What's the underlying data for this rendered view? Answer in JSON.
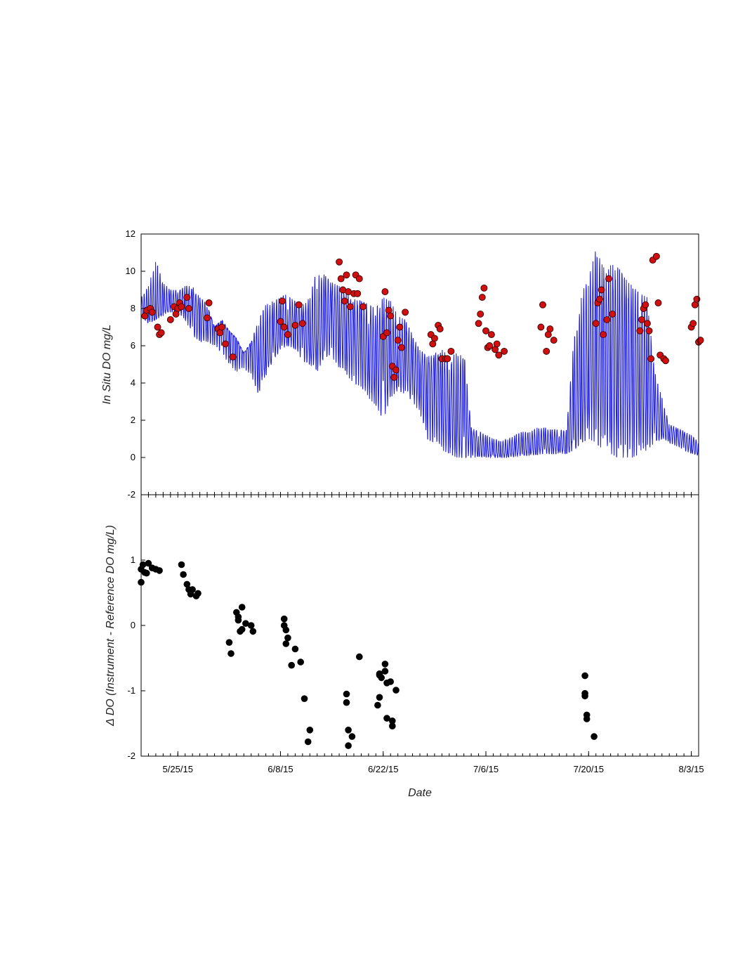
{
  "chart_data": [
    {
      "type": "line",
      "ylabel": "In Situ DO mg/L",
      "xlabel": "",
      "ylim": [
        -2,
        12
      ],
      "yticks": [
        -2,
        0,
        2,
        4,
        6,
        8,
        10,
        12
      ],
      "xlim": [
        "2015-05-20",
        "2015-08-04"
      ],
      "xticks": [],
      "grid": false,
      "series": [
        {
          "color": "#1a1adb",
          "style": "line",
          "x": [
            "2015-05-20",
            "2015-05-21",
            "2015-05-22",
            "2015-05-23",
            "2015-05-24",
            "2015-05-25",
            "2015-05-26",
            "2015-05-27",
            "2015-05-28",
            "2015-05-29",
            "2015-05-30",
            "2015-05-31",
            "2015-06-01",
            "2015-06-02",
            "2015-06-03",
            "2015-06-04",
            "2015-06-05",
            "2015-06-06",
            "2015-06-07",
            "2015-06-08",
            "2015-06-09",
            "2015-06-10",
            "2015-06-11",
            "2015-06-12",
            "2015-06-13",
            "2015-06-14",
            "2015-06-15",
            "2015-06-16",
            "2015-06-17",
            "2015-06-18",
            "2015-06-19",
            "2015-06-20",
            "2015-06-21",
            "2015-06-22",
            "2015-06-23",
            "2015-06-24",
            "2015-06-25",
            "2015-06-26",
            "2015-06-27",
            "2015-06-28",
            "2015-06-29",
            "2015-06-30",
            "2015-07-01",
            "2015-07-02",
            "2015-07-03",
            "2015-07-04",
            "2015-07-05",
            "2015-07-06",
            "2015-07-07",
            "2015-07-08",
            "2015-07-09",
            "2015-07-10",
            "2015-07-11",
            "2015-07-12",
            "2015-07-13",
            "2015-07-14",
            "2015-07-15",
            "2015-07-16",
            "2015-07-17",
            "2015-07-18",
            "2015-07-19",
            "2015-07-20",
            "2015-07-21",
            "2015-07-22",
            "2015-07-23",
            "2015-07-24",
            "2015-07-25",
            "2015-07-26",
            "2015-07-27",
            "2015-07-28",
            "2015-07-29",
            "2015-07-30",
            "2015-07-31",
            "2015-08-01",
            "2015-08-02",
            "2015-08-03",
            "2015-08-04"
          ],
          "y": [
            8.0,
            7.8,
            7.6,
            7.9,
            8.3,
            8.5,
            8.2,
            7.9,
            7.6,
            7.7,
            7.5,
            7.3,
            7.0,
            6.5,
            6.0,
            5.8,
            5.6,
            5.5,
            6.0,
            6.8,
            7.0,
            7.2,
            6.8,
            6.4,
            6.6,
            7.2,
            7.6,
            7.4,
            7.0,
            6.6,
            6.4,
            6.0,
            5.4,
            5.2,
            5.0,
            5.4,
            5.6,
            4.8,
            4.4,
            4.2,
            3.8,
            3.2,
            2.8,
            2.4,
            2.0,
            1.2,
            0.6,
            0.4,
            0.3,
            0.25,
            0.3,
            0.35,
            0.4,
            0.5,
            0.6,
            0.7,
            0.8,
            0.7,
            0.6,
            1.6,
            3.6,
            5.2,
            5.8,
            6.0,
            5.6,
            5.2,
            5.0,
            5.4,
            4.8,
            3.6,
            2.2,
            1.6,
            1.4,
            1.2,
            1.0,
            0.7,
            0.3
          ],
          "y_max": [
            8.6,
            9.2,
            10.6,
            9.4,
            9.0,
            9.0,
            9.2,
            9.2,
            8.6,
            8.2,
            7.0,
            7.4,
            6.8,
            6.4,
            5.6,
            6.2,
            7.4,
            8.2,
            8.4,
            8.6,
            8.8,
            8.4,
            8.2,
            8.6,
            10.2,
            9.8,
            9.4,
            9.2,
            8.8,
            8.6,
            8.4,
            8.2,
            8.0,
            8.6,
            8.4,
            7.6,
            7.4,
            6.6,
            5.8,
            5.4,
            5.6,
            5.8,
            5.4,
            5.6,
            5.8,
            1.6,
            1.4,
            1.2,
            1.0,
            0.9,
            1.0,
            1.2,
            1.4,
            1.4,
            1.6,
            1.6,
            1.5,
            1.5,
            1.5,
            6.4,
            8.8,
            9.6,
            11.2,
            10.2,
            10.4,
            10.2,
            9.6,
            9.2,
            8.8,
            8.6,
            4.6,
            3.2,
            1.8,
            1.6,
            1.4,
            1.2,
            0.8
          ],
          "y_min": [
            7.6,
            7.2,
            7.4,
            7.6,
            7.8,
            7.8,
            7.4,
            6.6,
            6.2,
            6.2,
            6.0,
            5.6,
            5.0,
            4.6,
            4.8,
            4.4,
            3.4,
            4.4,
            5.2,
            5.8,
            6.0,
            5.8,
            5.2,
            5.0,
            4.6,
            5.4,
            5.4,
            4.8,
            4.4,
            4.0,
            3.8,
            3.2,
            2.8,
            2.0,
            3.2,
            3.6,
            3.4,
            3.0,
            2.4,
            1.0,
            0.8,
            0.4,
            0.2,
            0.0,
            0.0,
            0.0,
            0.0,
            0.0,
            0.0,
            0.0,
            0.0,
            0.05,
            0.1,
            0.1,
            0.15,
            0.2,
            0.2,
            0.2,
            0.2,
            0.4,
            0.8,
            1.0,
            0.8,
            0.4,
            0.2,
            0.0,
            0.0,
            0.0,
            0.2,
            0.4,
            0.8,
            1.0,
            0.8,
            0.6,
            0.4,
            0.2,
            0.1
          ]
        },
        {
          "color": "#d01010",
          "style": "marker",
          "x": [
            "2015-05-20T12",
            "2015-05-20T18",
            "2015-05-21T06",
            "2015-05-21T12",
            "2015-05-22T06",
            "2015-05-22T12",
            "2015-05-22T18",
            "2015-05-24T00",
            "2015-05-24T12",
            "2015-05-24T18",
            "2015-05-25T00",
            "2015-05-25T06",
            "2015-05-25T12",
            "2015-05-26T06",
            "2015-05-26T12",
            "2015-05-29T00",
            "2015-05-29T06",
            "2015-05-30T12",
            "2015-05-30T18",
            "2015-05-31T00",
            "2015-05-31T12",
            "2015-06-01T12",
            "2015-06-08T00",
            "2015-06-08T06",
            "2015-06-08T12",
            "2015-06-09T00",
            "2015-06-10T00",
            "2015-06-10T12",
            "2015-06-11T00",
            "2015-06-16T00",
            "2015-06-16T06",
            "2015-06-16T12",
            "2015-06-16T18",
            "2015-06-17T00",
            "2015-06-17T06",
            "2015-06-17T12",
            "2015-06-18T00",
            "2015-06-18T06",
            "2015-06-18T12",
            "2015-06-18T18",
            "2015-06-19T06",
            "2015-06-22T00",
            "2015-06-22T06",
            "2015-06-22T12",
            "2015-06-22T18",
            "2015-06-23T00",
            "2015-06-23T06",
            "2015-06-23T12",
            "2015-06-23T18",
            "2015-06-24T00",
            "2015-06-24T06",
            "2015-06-24T12",
            "2015-06-25T00",
            "2015-06-28T12",
            "2015-06-28T18",
            "2015-06-29T00",
            "2015-06-29T12",
            "2015-06-29T18",
            "2015-06-30T00",
            "2015-06-30T12",
            "2015-06-30T18",
            "2015-07-01T06",
            "2015-07-05T00",
            "2015-07-05T06",
            "2015-07-05T12",
            "2015-07-05T18",
            "2015-07-06T00",
            "2015-07-06T06",
            "2015-07-06T12",
            "2015-07-06T18",
            "2015-07-07T06",
            "2015-07-07T12",
            "2015-07-07T18",
            "2015-07-08T12",
            "2015-07-13T12",
            "2015-07-13T18",
            "2015-07-14T06",
            "2015-07-14T12",
            "2015-07-14T18",
            "2015-07-15T06",
            "2015-07-21T00",
            "2015-07-21T06",
            "2015-07-21T12",
            "2015-07-21T18",
            "2015-07-22T00",
            "2015-07-22T12",
            "2015-07-22T18",
            "2015-07-23T06",
            "2015-07-27T00",
            "2015-07-27T06",
            "2015-07-27T12",
            "2015-07-27T18",
            "2015-07-28T00",
            "2015-07-28T06",
            "2015-07-28T12",
            "2015-07-28T18",
            "2015-07-29T06",
            "2015-07-29T12",
            "2015-07-29T18",
            "2015-07-30T06",
            "2015-07-30T12",
            "2015-08-03T00",
            "2015-08-03T06",
            "2015-08-03T12",
            "2015-08-03T18",
            "2015-08-04T00",
            "2015-08-04T06"
          ],
          "y": [
            7.6,
            7.9,
            8.0,
            7.8,
            7.0,
            6.6,
            6.7,
            7.4,
            8.1,
            7.7,
            8.0,
            8.3,
            8.1,
            8.6,
            8.0,
            7.5,
            8.3,
            6.9,
            6.7,
            7.0,
            6.1,
            5.4,
            7.3,
            8.4,
            7.0,
            6.6,
            7.1,
            8.2,
            7.2,
            10.5,
            9.6,
            9.0,
            8.4,
            9.8,
            8.9,
            8.1,
            8.8,
            9.8,
            8.8,
            9.6,
            8.1,
            6.5,
            8.9,
            6.7,
            7.9,
            7.6,
            4.9,
            4.3,
            4.7,
            6.3,
            7.0,
            5.9,
            7.8,
            6.6,
            6.1,
            6.4,
            7.1,
            6.9,
            5.3,
            5.3,
            5.3,
            5.7,
            7.2,
            7.7,
            8.6,
            9.1,
            6.8,
            5.9,
            6.0,
            6.6,
            5.8,
            6.1,
            5.5,
            5.7,
            7.0,
            8.2,
            5.7,
            6.6,
            6.9,
            6.3,
            7.2,
            8.3,
            8.5,
            9.0,
            6.6,
            7.4,
            9.6,
            7.7,
            6.8,
            7.4,
            8.0,
            8.2,
            7.2,
            6.8,
            5.3,
            10.6,
            10.8,
            8.3,
            5.5,
            5.3,
            5.2,
            7.0,
            7.2,
            8.2,
            8.5,
            6.2,
            6.3
          ]
        }
      ]
    },
    {
      "type": "scatter",
      "xlabel": "Date",
      "ylabel": "Δ DO (Instrument - Reference DO mg/L)",
      "ylim": [
        -2,
        2
      ],
      "yticks": [
        -2,
        -1,
        0,
        1
      ],
      "xlim": [
        "2015-05-20",
        "2015-08-04"
      ],
      "xticks": [
        "2015-05-25",
        "2015-06-08",
        "2015-06-22",
        "2015-07-06",
        "2015-07-20",
        "2015-08-03"
      ],
      "xtick_labels": [
        "5/25/15",
        "6/8/15",
        "6/22/15",
        "7/6/15",
        "7/20/15",
        "8/3/15"
      ],
      "grid": false,
      "series": [
        {
          "color": "#000000",
          "x": [
            "2015-05-20T00",
            "2015-05-20T00",
            "2015-05-20T06",
            "2015-05-20T12",
            "2015-05-20T18",
            "2015-05-21T00",
            "2015-05-21T12",
            "2015-05-22T00",
            "2015-05-22T12",
            "2015-05-25T12",
            "2015-05-25T18",
            "2015-05-26T06",
            "2015-05-26T12",
            "2015-05-26T18",
            "2015-05-27T00",
            "2015-05-27T12",
            "2015-05-27T18",
            "2015-06-01T00",
            "2015-06-01T06",
            "2015-06-02T00",
            "2015-06-02T06",
            "2015-06-02T06",
            "2015-06-02T12",
            "2015-06-02T18",
            "2015-06-02T18",
            "2015-06-03T06",
            "2015-06-04T00",
            "2015-06-04T06",
            "2015-06-08T12",
            "2015-06-08T12",
            "2015-06-08T18",
            "2015-06-08T18",
            "2015-06-09T00",
            "2015-06-09T12",
            "2015-06-10T00",
            "2015-06-10T18",
            "2015-06-11T06",
            "2015-06-11T18",
            "2015-06-12T00",
            "2015-06-17T00",
            "2015-06-17T00",
            "2015-06-17T06",
            "2015-06-17T06",
            "2015-06-17T18",
            "2015-06-18T18",
            "2015-06-21T06",
            "2015-06-21T12",
            "2015-06-21T12",
            "2015-06-21T12",
            "2015-06-21T18",
            "2015-06-22T06",
            "2015-06-22T06",
            "2015-06-22T12",
            "2015-06-22T12",
            "2015-06-23T00",
            "2015-06-23T06",
            "2015-06-23T06",
            "2015-06-23T18",
            "2015-07-19T12",
            "2015-07-19T12",
            "2015-07-19T12",
            "2015-07-19T18",
            "2015-07-19T18",
            "2015-07-20T18"
          ],
          "y": [
            0.86,
            0.66,
            0.93,
            0.81,
            0.8,
            0.95,
            0.88,
            0.86,
            0.84,
            0.93,
            0.78,
            0.63,
            0.55,
            0.48,
            0.55,
            0.45,
            0.49,
            -0.26,
            -0.43,
            0.2,
            0.13,
            0.08,
            -0.09,
            -0.06,
            0.28,
            0.03,
            0.0,
            -0.09,
            0.1,
            0.0,
            -0.07,
            -0.28,
            -0.19,
            -0.61,
            -0.36,
            -0.56,
            -1.12,
            -1.78,
            -1.6,
            -1.05,
            -1.18,
            -1.84,
            -1.6,
            -1.7,
            -0.48,
            -1.22,
            -1.1,
            -0.74,
            -0.76,
            -0.8,
            -0.59,
            -0.7,
            -0.88,
            -1.42,
            -0.86,
            -1.46,
            -1.54,
            -0.99,
            -0.77,
            -1.04,
            -1.08,
            -1.37,
            -1.43,
            -1.7
          ]
        }
      ]
    }
  ]
}
